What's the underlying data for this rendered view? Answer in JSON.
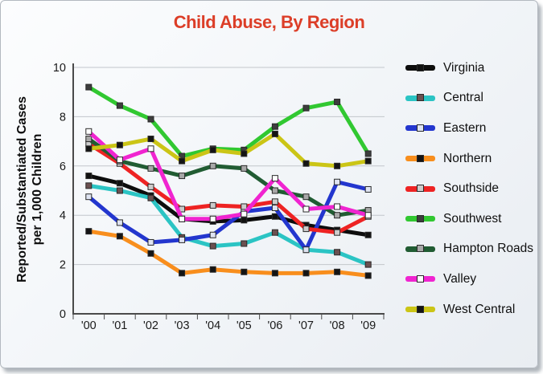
{
  "title": "Child Abuse, By Region",
  "title_color": "#DC3E28",
  "chart_data": {
    "type": "line",
    "x": [
      "'00",
      "'01",
      "'02",
      "'03",
      "'04",
      "'05",
      "'06",
      "'07",
      "'08",
      "'09"
    ],
    "ylabel_lines": [
      "Reported/Substantiated Cases",
      "per 1,000 Children"
    ],
    "ylim": [
      0,
      10
    ],
    "yticks": [
      0,
      2,
      4,
      6,
      8,
      10
    ],
    "grid": true,
    "legend_position": "right",
    "series": [
      {
        "name": "Virginia",
        "color": "#0d0d0d",
        "marker_fill": "#111111",
        "values": [
          5.6,
          5.3,
          4.8,
          3.85,
          3.75,
          3.8,
          3.95,
          3.6,
          3.4,
          3.2
        ]
      },
      {
        "name": "Central",
        "color": "#2BC4C4",
        "marker_fill": "#6b5050",
        "values": [
          5.2,
          5.0,
          4.7,
          3.1,
          2.75,
          2.85,
          3.3,
          2.6,
          2.5,
          2.0
        ]
      },
      {
        "name": "Eastern",
        "color": "#2336CE",
        "marker_fill": "#dfe4f2",
        "values": [
          4.75,
          3.7,
          2.9,
          3.0,
          3.2,
          4.15,
          4.3,
          2.6,
          5.35,
          5.05
        ]
      },
      {
        "name": "Northern",
        "color": "#F88E1D",
        "marker_fill": "#141414",
        "values": [
          3.35,
          3.15,
          2.45,
          1.65,
          1.8,
          1.7,
          1.65,
          1.65,
          1.7,
          1.55
        ]
      },
      {
        "name": "Southside",
        "color": "#EE2323",
        "marker_fill": "#cccccc",
        "values": [
          6.9,
          6.1,
          5.15,
          4.25,
          4.4,
          4.35,
          4.55,
          3.45,
          3.3,
          3.95
        ]
      },
      {
        "name": "Southwest",
        "color": "#31C831",
        "marker_fill": "#3d3d3d",
        "values": [
          9.2,
          8.45,
          7.9,
          6.4,
          6.7,
          6.65,
          7.6,
          8.35,
          8.6,
          6.5
        ]
      },
      {
        "name": "Hampton Roads",
        "color": "#215C33",
        "marker_fill": "#a8a8a8",
        "values": [
          7.1,
          6.2,
          5.9,
          5.6,
          6.0,
          5.9,
          5.0,
          4.75,
          4.0,
          4.2
        ]
      },
      {
        "name": "Valley",
        "color": "#F024D0",
        "marker_fill": "#ffffff",
        "values": [
          7.4,
          6.25,
          6.7,
          3.85,
          3.85,
          4.05,
          5.5,
          4.25,
          4.35,
          4.0
        ]
      },
      {
        "name": "West Central",
        "color": "#CBC516",
        "marker_fill": "#141414",
        "values": [
          6.7,
          6.85,
          7.1,
          6.2,
          6.65,
          6.5,
          7.3,
          6.1,
          6.0,
          6.2
        ]
      }
    ]
  }
}
